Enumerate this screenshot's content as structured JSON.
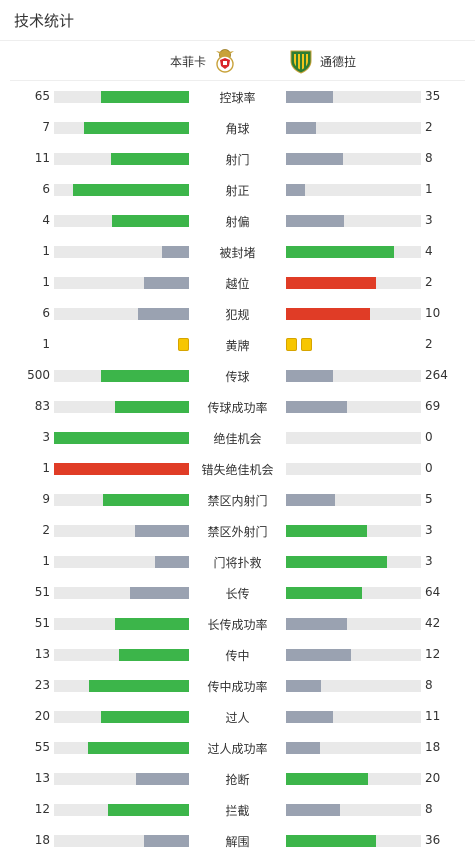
{
  "header": {
    "title": "技术统计"
  },
  "teams": {
    "home": {
      "name": "本菲卡",
      "logo_icon": "benfica-crest"
    },
    "away": {
      "name": "通德拉",
      "logo_icon": "tondela-crest"
    }
  },
  "colors": {
    "green": "#3cb54a",
    "gray": "#9aa2b1",
    "red": "#e03c26",
    "track": "#e9e9e9",
    "yellow": "#f7c600"
  },
  "stats": [
    {
      "label": "控球率",
      "home": "65",
      "away": "35",
      "home_frac": 0.65,
      "away_frac": 0.35,
      "home_color": "green",
      "away_color": "gray"
    },
    {
      "label": "角球",
      "home": "7",
      "away": "2",
      "home_frac": 0.78,
      "away_frac": 0.22,
      "home_color": "green",
      "away_color": "gray"
    },
    {
      "label": "射门",
      "home": "11",
      "away": "8",
      "home_frac": 0.58,
      "away_frac": 0.42,
      "home_color": "green",
      "away_color": "gray"
    },
    {
      "label": "射正",
      "home": "6",
      "away": "1",
      "home_frac": 0.86,
      "away_frac": 0.14,
      "home_color": "green",
      "away_color": "gray"
    },
    {
      "label": "射偏",
      "home": "4",
      "away": "3",
      "home_frac": 0.57,
      "away_frac": 0.43,
      "home_color": "green",
      "away_color": "gray"
    },
    {
      "label": "被封堵",
      "home": "1",
      "away": "4",
      "home_frac": 0.2,
      "away_frac": 0.8,
      "home_color": "gray",
      "away_color": "green"
    },
    {
      "label": "越位",
      "home": "1",
      "away": "2",
      "home_frac": 0.33,
      "away_frac": 0.67,
      "home_color": "gray",
      "away_color": "red"
    },
    {
      "label": "犯规",
      "home": "6",
      "away": "10",
      "home_frac": 0.38,
      "away_frac": 0.62,
      "home_color": "gray",
      "away_color": "red"
    },
    {
      "label": "黄牌",
      "home": "1",
      "away": "2",
      "type": "cards",
      "home_cards": 1,
      "away_cards": 2
    },
    {
      "label": "传球",
      "home": "500",
      "away": "264",
      "home_frac": 0.65,
      "away_frac": 0.35,
      "home_color": "green",
      "away_color": "gray"
    },
    {
      "label": "传球成功率",
      "home": "83",
      "away": "69",
      "home_frac": 0.55,
      "away_frac": 0.45,
      "home_color": "green",
      "away_color": "gray"
    },
    {
      "label": "绝佳机会",
      "home": "3",
      "away": "0",
      "home_frac": 1.0,
      "away_frac": 0.0,
      "home_color": "green",
      "away_color": "gray"
    },
    {
      "label": "错失绝佳机会",
      "home": "1",
      "away": "0",
      "home_frac": 1.0,
      "away_frac": 0.0,
      "home_color": "red",
      "away_color": "gray"
    },
    {
      "label": "禁区内射门",
      "home": "9",
      "away": "5",
      "home_frac": 0.64,
      "away_frac": 0.36,
      "home_color": "green",
      "away_color": "gray"
    },
    {
      "label": "禁区外射门",
      "home": "2",
      "away": "3",
      "home_frac": 0.4,
      "away_frac": 0.6,
      "home_color": "gray",
      "away_color": "green"
    },
    {
      "label": "门将扑救",
      "home": "1",
      "away": "3",
      "home_frac": 0.25,
      "away_frac": 0.75,
      "home_color": "gray",
      "away_color": "green"
    },
    {
      "label": "长传",
      "home": "51",
      "away": "64",
      "home_frac": 0.44,
      "away_frac": 0.56,
      "home_color": "gray",
      "away_color": "green"
    },
    {
      "label": "长传成功率",
      "home": "51",
      "away": "42",
      "home_frac": 0.55,
      "away_frac": 0.45,
      "home_color": "green",
      "away_color": "gray"
    },
    {
      "label": "传中",
      "home": "13",
      "away": "12",
      "home_frac": 0.52,
      "away_frac": 0.48,
      "home_color": "green",
      "away_color": "gray"
    },
    {
      "label": "传中成功率",
      "home": "23",
      "away": "8",
      "home_frac": 0.74,
      "away_frac": 0.26,
      "home_color": "green",
      "away_color": "gray"
    },
    {
      "label": "过人",
      "home": "20",
      "away": "11",
      "home_frac": 0.65,
      "away_frac": 0.35,
      "home_color": "green",
      "away_color": "gray"
    },
    {
      "label": "过人成功率",
      "home": "55",
      "away": "18",
      "home_frac": 0.75,
      "away_frac": 0.25,
      "home_color": "green",
      "away_color": "gray"
    },
    {
      "label": "抢断",
      "home": "13",
      "away": "20",
      "home_frac": 0.39,
      "away_frac": 0.61,
      "home_color": "gray",
      "away_color": "green"
    },
    {
      "label": "拦截",
      "home": "12",
      "away": "8",
      "home_frac": 0.6,
      "away_frac": 0.4,
      "home_color": "green",
      "away_color": "gray"
    },
    {
      "label": "解围",
      "home": "18",
      "away": "36",
      "home_frac": 0.33,
      "away_frac": 0.67,
      "home_color": "gray",
      "away_color": "green"
    }
  ]
}
